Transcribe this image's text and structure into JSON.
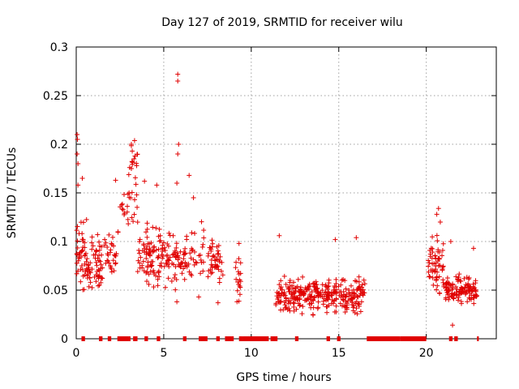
{
  "chart_data": {
    "type": "scatter",
    "title": "Day 127 of 2019, SRMTID for receiver wilu",
    "xlabel": "GPS time / hours",
    "ylabel": "SRMTID / TECUs",
    "xlim": [
      0,
      24
    ],
    "ylim": [
      0,
      0.3
    ],
    "grid": true,
    "marker": "+",
    "color": "#e00000",
    "x_ticks": [
      0,
      5,
      10,
      15,
      20
    ],
    "x_tick_labels": [
      "0",
      "5",
      "10",
      "15",
      "20"
    ],
    "y_ticks": [
      0,
      0.05,
      0.1,
      0.15,
      0.2,
      0.25,
      0.3
    ],
    "y_tick_labels": [
      "0",
      "0.05",
      "0.1",
      "0.15",
      "0.2",
      "0.25",
      "0.3"
    ],
    "clusters": [
      {
        "x_range": [
          0.0,
          0.6
        ],
        "y_center": 0.09,
        "y_spread": 0.035,
        "n": 45
      },
      {
        "x_range": [
          0.6,
          1.5
        ],
        "y_center": 0.075,
        "y_spread": 0.025,
        "n": 60
      },
      {
        "x_range": [
          1.5,
          2.3
        ],
        "y_center": 0.09,
        "y_spread": 0.02,
        "n": 30
      },
      {
        "x_range": [
          2.3,
          3.0
        ],
        "y_center": 0.13,
        "y_spread": 0.025,
        "n": 15
      },
      {
        "x_range": [
          3.0,
          3.5
        ],
        "y_center": 0.15,
        "y_spread": 0.04,
        "n": 25
      },
      {
        "x_range": [
          3.5,
          5.0
        ],
        "y_center": 0.085,
        "y_spread": 0.025,
        "n": 90
      },
      {
        "x_range": [
          5.0,
          6.5
        ],
        "y_center": 0.08,
        "y_spread": 0.025,
        "n": 70
      },
      {
        "x_range": [
          6.5,
          7.3
        ],
        "y_center": 0.085,
        "y_spread": 0.03,
        "n": 25
      },
      {
        "x_range": [
          7.5,
          8.4
        ],
        "y_center": 0.08,
        "y_spread": 0.02,
        "n": 45
      },
      {
        "x_range": [
          9.1,
          9.4
        ],
        "y_center": 0.06,
        "y_spread": 0.02,
        "n": 18
      },
      {
        "x_range": [
          11.4,
          12.4
        ],
        "y_center": 0.045,
        "y_spread": 0.015,
        "n": 60
      },
      {
        "x_range": [
          12.4,
          14.5
        ],
        "y_center": 0.045,
        "y_spread": 0.015,
        "n": 140
      },
      {
        "x_range": [
          14.5,
          16.5
        ],
        "y_center": 0.045,
        "y_spread": 0.015,
        "n": 120
      },
      {
        "x_range": [
          20.1,
          21.0
        ],
        "y_center": 0.075,
        "y_spread": 0.025,
        "n": 60
      },
      {
        "x_range": [
          21.0,
          22.9
        ],
        "y_center": 0.05,
        "y_spread": 0.012,
        "n": 120
      }
    ],
    "peaks": [
      {
        "x": 0.05,
        "y": 0.21
      },
      {
        "x": 0.07,
        "y": 0.205
      },
      {
        "x": 0.05,
        "y": 0.19
      },
      {
        "x": 0.1,
        "y": 0.18
      },
      {
        "x": 0.1,
        "y": 0.158
      },
      {
        "x": 0.35,
        "y": 0.165
      },
      {
        "x": 2.25,
        "y": 0.163
      },
      {
        "x": 3.15,
        "y": 0.2
      },
      {
        "x": 3.2,
        "y": 0.193
      },
      {
        "x": 3.3,
        "y": 0.185
      },
      {
        "x": 3.15,
        "y": 0.175
      },
      {
        "x": 3.9,
        "y": 0.162
      },
      {
        "x": 4.6,
        "y": 0.158
      },
      {
        "x": 5.8,
        "y": 0.272
      },
      {
        "x": 5.8,
        "y": 0.265
      },
      {
        "x": 5.85,
        "y": 0.2
      },
      {
        "x": 5.8,
        "y": 0.19
      },
      {
        "x": 5.75,
        "y": 0.16
      },
      {
        "x": 6.45,
        "y": 0.168
      },
      {
        "x": 6.7,
        "y": 0.145
      },
      {
        "x": 9.3,
        "y": 0.098
      },
      {
        "x": 11.6,
        "y": 0.106
      },
      {
        "x": 14.8,
        "y": 0.102
      },
      {
        "x": 16.0,
        "y": 0.104
      },
      {
        "x": 20.7,
        "y": 0.134
      },
      {
        "x": 20.6,
        "y": 0.128
      },
      {
        "x": 20.8,
        "y": 0.12
      },
      {
        "x": 21.4,
        "y": 0.1
      },
      {
        "x": 21.5,
        "y": 0.014
      },
      {
        "x": 22.7,
        "y": 0.093
      },
      {
        "x": 5.75,
        "y": 0.038
      },
      {
        "x": 7.0,
        "y": 0.043
      },
      {
        "x": 8.1,
        "y": 0.037
      }
    ],
    "zero_segments": [
      [
        0.3,
        0.5
      ],
      [
        1.3,
        1.5
      ],
      [
        1.8,
        2.0
      ],
      [
        2.35,
        3.1
      ],
      [
        3.25,
        3.5
      ],
      [
        3.9,
        4.1
      ],
      [
        4.6,
        4.8
      ],
      [
        6.1,
        6.3
      ],
      [
        7.0,
        7.5
      ],
      [
        8.0,
        8.2
      ],
      [
        8.5,
        9.0
      ],
      [
        9.3,
        9.5
      ],
      [
        9.5,
        11.0
      ],
      [
        11.1,
        11.5
      ],
      [
        12.5,
        12.7
      ],
      [
        14.3,
        14.5
      ],
      [
        14.9,
        15.1
      ],
      [
        16.6,
        18.5
      ],
      [
        18.5,
        20.0
      ],
      [
        21.3,
        21.5
      ],
      [
        21.6,
        21.8
      ],
      [
        22.9,
        23.0
      ]
    ]
  }
}
